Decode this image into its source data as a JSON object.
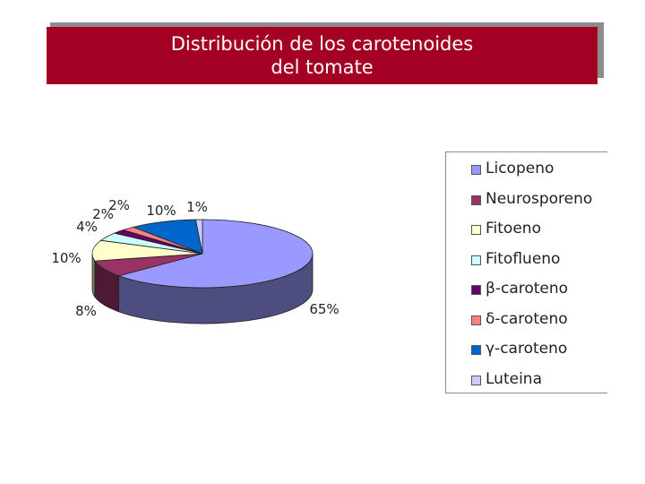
{
  "title": {
    "line1": "Distribución de los carotenoides",
    "line2": "del tomate"
  },
  "chart_data": {
    "type": "pie",
    "title": "Distribución de los carotenoides del tomate",
    "categories": [
      "Licopeno",
      "Neurosporeno",
      "Fitoeno",
      "Fitoflueno",
      "β-caroteno",
      "δ-caroteno",
      "γ-caroteno",
      "Luteina"
    ],
    "values": [
      65,
      8,
      10,
      4,
      2,
      2,
      10,
      1
    ],
    "labels": [
      "65%",
      "8%",
      "10%",
      "4%",
      "2%",
      "2%",
      "10%",
      "1%"
    ],
    "colors": [
      "#9999ff",
      "#993366",
      "#ffffcc",
      "#ccffff",
      "#660066",
      "#ff8080",
      "#0066cc",
      "#ccccff"
    ],
    "legend_position": "right",
    "style": "3d-pie"
  }
}
